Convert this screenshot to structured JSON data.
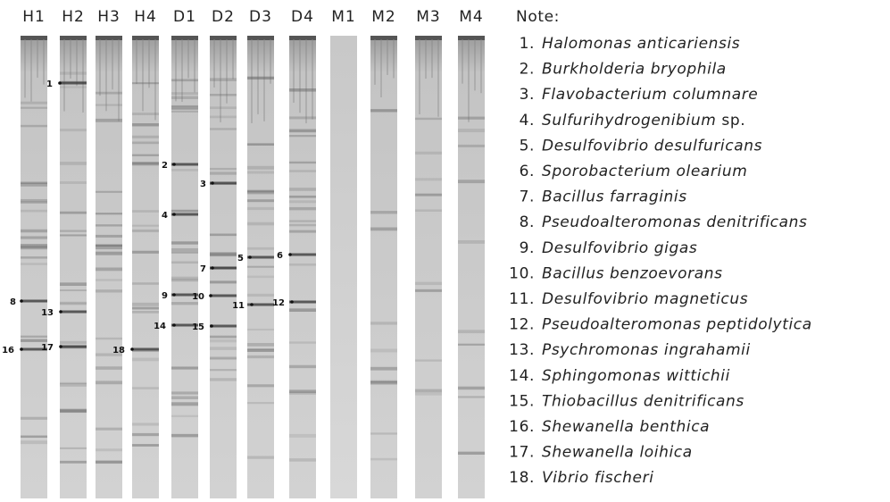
{
  "lanes": [
    "H1",
    "H2",
    "H3",
    "H4",
    "D1",
    "D2",
    "D3",
    "D4",
    "M1",
    "M2",
    "M3",
    "M4"
  ],
  "markers": [
    "1",
    "2",
    "3",
    "4",
    "5",
    "6",
    "7",
    "8",
    "9",
    "10",
    "11",
    "12",
    "13",
    "14",
    "15",
    "16",
    "17",
    "18"
  ],
  "note": {
    "title": "Note:",
    "items": [
      {
        "number": "1.",
        "name": "Halomonas anticariensis"
      },
      {
        "number": "2.",
        "name": "Burkholderia bryophila"
      },
      {
        "number": "3.",
        "name": "Flavobacterium columnare"
      },
      {
        "number": "4.",
        "name": "Sulfurihydrogenibium",
        "suffix": "sp."
      },
      {
        "number": "5.",
        "name": "Desulfovibrio desulfuricans"
      },
      {
        "number": "6.",
        "name": "Sporobacterium olearium"
      },
      {
        "number": "7.",
        "name": "Bacillus farraginis"
      },
      {
        "number": "8.",
        "name": "Pseudoalteromonas denitrificans"
      },
      {
        "number": "9.",
        "name": "Desulfovibrio gigas"
      },
      {
        "number": "10.",
        "name": "Bacillus benzoevorans"
      },
      {
        "number": "11.",
        "name": "Desulfovibrio magneticus"
      },
      {
        "number": "12.",
        "name": "Pseudoalteromonas peptidolytica"
      },
      {
        "number": "13.",
        "name": "Psychromonas ingrahamii"
      },
      {
        "number": "14.",
        "name": "Sphingomonas wittichii"
      },
      {
        "number": "15.",
        "name": "Thiobacillus denitrificans"
      },
      {
        "number": "16.",
        "name": "Shewanella benthica"
      },
      {
        "number": "17.",
        "name": "Shewanella loihica"
      },
      {
        "number": "18.",
        "name": "Vibrio fischeri"
      }
    ]
  }
}
